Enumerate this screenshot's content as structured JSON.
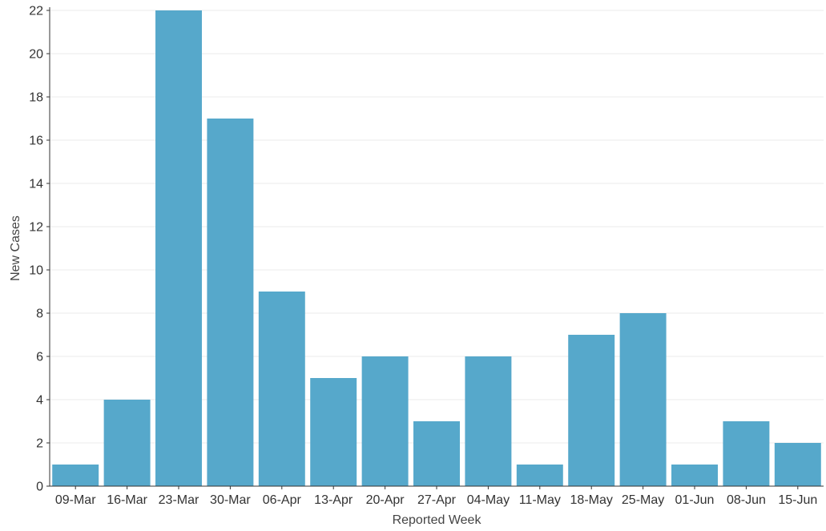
{
  "chart_data": {
    "type": "bar",
    "title": "",
    "xlabel": "Reported Week",
    "ylabel": "New Cases",
    "categories": [
      "09-Mar",
      "16-Mar",
      "23-Mar",
      "30-Mar",
      "06-Apr",
      "13-Apr",
      "20-Apr",
      "27-Apr",
      "04-May",
      "11-May",
      "18-May",
      "25-May",
      "01-Jun",
      "08-Jun",
      "15-Jun"
    ],
    "values": [
      1,
      4,
      22,
      17,
      9,
      5,
      6,
      3,
      6,
      1,
      7,
      8,
      1,
      3,
      2
    ],
    "ylim": [
      0,
      22
    ],
    "yticks": [
      0,
      2,
      4,
      6,
      8,
      10,
      12,
      14,
      16,
      18,
      20,
      22
    ],
    "grid": "horizontal",
    "legend": "none",
    "colors": {
      "bar": "#56a8cb",
      "grid": "#ebebeb",
      "axis": "#333333"
    }
  }
}
